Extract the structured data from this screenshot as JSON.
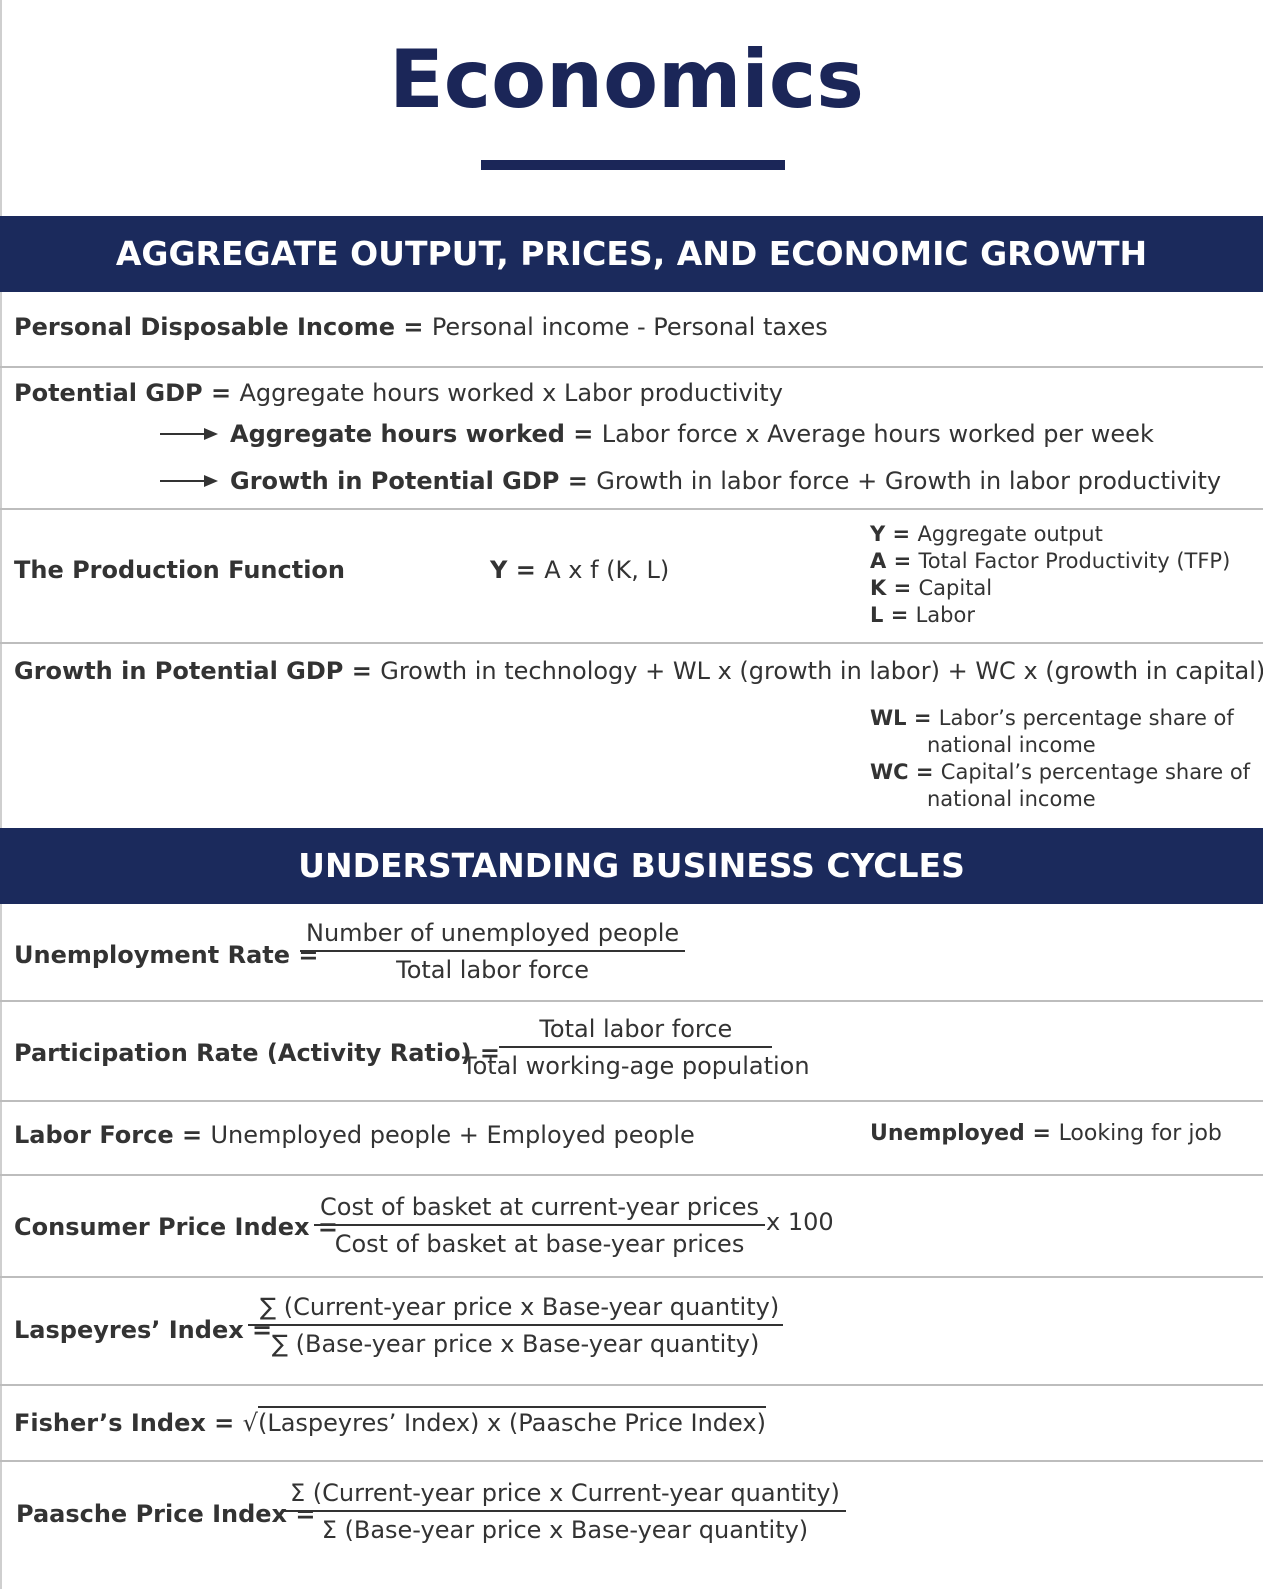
{
  "title": "Economics",
  "colors": {
    "navy": "#1b2a5c",
    "text": "#333333",
    "divider": "#bdbdbd"
  },
  "section1": {
    "heading": "AGGREGATE OUTPUT, PRICES, AND ECONOMIC GROWTH",
    "pdi": {
      "label": "Personal Disposable Income",
      "eq": " = ",
      "text": "Personal income - Personal taxes"
    },
    "potential_gdp": {
      "label": "Potential GDP",
      "eq": " = ",
      "text": "Aggregate hours worked x Labor productivity",
      "sub1_label": "Aggregate hours worked",
      "sub1_text": "Labor force x Average hours worked per week",
      "sub2_label": "Growth in Potential GDP",
      "sub2_text": "Growth in labor force + Growth in labor productivity"
    },
    "production_function": {
      "label": "The Production Function",
      "formula_var": "Y",
      "formula_text": "A x f (K, L)",
      "legend": [
        {
          "var": "Y",
          "text": "Aggregate output"
        },
        {
          "var": "A",
          "text": "Total Factor Productivity (TFP)"
        },
        {
          "var": "K",
          "text": "Capital"
        },
        {
          "var": "L",
          "text": "Labor"
        }
      ]
    },
    "growth_gdp": {
      "label": "Growth in Potential GDP",
      "eq": " = ",
      "text": "Growth in technology + WL x (growth in labor) + WC x (growth in capital)",
      "wl_var": "WL",
      "wl_line1": "Labor’s percentage share of",
      "wl_line2": "national income",
      "wc_var": "WC",
      "wc_line1": "Capital’s percentage share of",
      "wc_line2": "national income"
    }
  },
  "section2": {
    "heading": "UNDERSTANDING BUSINESS CYCLES",
    "unemployment": {
      "label": "Unemployment Rate",
      "num": "Number of unemployed people",
      "den": "Total labor force"
    },
    "participation": {
      "label": "Participation Rate (Activity Ratio)",
      "num": "Total labor force",
      "den": "Total working-age population"
    },
    "labor_force": {
      "label": "Labor Force",
      "text": "Unemployed people + Employed people",
      "note_label": "Unemployed",
      "note_text": "Looking for job"
    },
    "cpi": {
      "label": "Consumer Price Index",
      "num": "Cost of basket at current-year prices",
      "den": "Cost of basket at base-year prices",
      "mult": "x 100"
    },
    "laspeyres": {
      "label": "Laspeyres’ Index",
      "num": "∑ (Current-year price x Base-year quantity)",
      "den": "∑ (Base-year price x Base-year quantity)"
    },
    "fisher": {
      "label": "Fisher’s Index",
      "root": "√",
      "text": "(Laspeyres’ Index) x (Paasche Price Index)"
    },
    "paasche": {
      "label": "Paasche Price Index",
      "num": "Σ (Current-year price x Current-year quantity)",
      "den": "Σ (Base-year price x Base-year quantity)"
    }
  }
}
